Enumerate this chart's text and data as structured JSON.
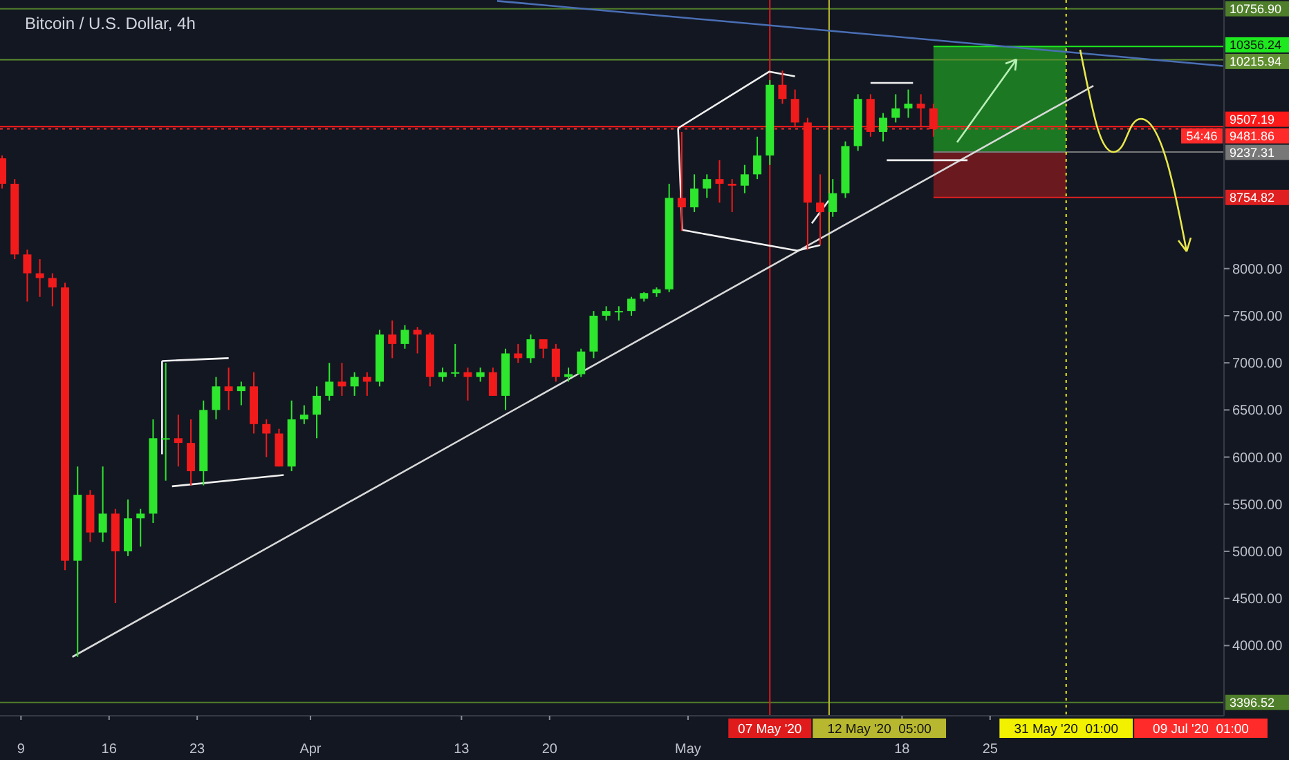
{
  "chart_data": {
    "type": "candlestick",
    "title": "Bitcoin / U.S. Dollar, 4h",
    "x": [
      "2020-03-07T12:00",
      "2020-03-08T12:00",
      "2020-03-09T12:00",
      "2020-03-10T12:00",
      "2020-03-11T12:00",
      "2020-03-12T12:00",
      "2020-03-13T12:00",
      "2020-03-14T12:00",
      "2020-03-15T12:00",
      "2020-03-16T12:00",
      "2020-03-17T12:00",
      "2020-03-18T12:00",
      "2020-03-19T12:00",
      "2020-03-20T12:00",
      "2020-03-21T12:00",
      "2020-03-22T12:00",
      "2020-03-23T12:00",
      "2020-03-24T12:00",
      "2020-03-25T12:00",
      "2020-03-26T12:00",
      "2020-03-27T12:00",
      "2020-03-28T12:00",
      "2020-03-29T12:00",
      "2020-03-30T12:00",
      "2020-03-31T12:00",
      "2020-04-01T12:00",
      "2020-04-02T12:00",
      "2020-04-03T12:00",
      "2020-04-04T12:00",
      "2020-04-05T12:00",
      "2020-04-06T12:00",
      "2020-04-07T12:00",
      "2020-04-08T12:00",
      "2020-04-09T12:00",
      "2020-04-10T12:00",
      "2020-04-11T12:00",
      "2020-04-12T12:00",
      "2020-04-13T12:00",
      "2020-04-14T12:00",
      "2020-04-15T12:00",
      "2020-04-16T12:00",
      "2020-04-17T12:00",
      "2020-04-18T12:00",
      "2020-04-19T12:00",
      "2020-04-20T12:00",
      "2020-04-21T12:00",
      "2020-04-22T12:00",
      "2020-04-23T12:00",
      "2020-04-24T12:00",
      "2020-04-25T12:00",
      "2020-04-26T12:00",
      "2020-04-27T12:00",
      "2020-04-28T12:00",
      "2020-04-29T12:00",
      "2020-04-30T12:00",
      "2020-05-01T12:00",
      "2020-05-02T12:00",
      "2020-05-03T12:00",
      "2020-05-04T12:00",
      "2020-05-05T12:00",
      "2020-05-06T12:00",
      "2020-05-07T12:00",
      "2020-05-08T12:00",
      "2020-05-09T12:00",
      "2020-05-10T12:00",
      "2020-05-11T12:00",
      "2020-05-12T12:00",
      "2020-05-13T12:00",
      "2020-05-14T12:00",
      "2020-05-15T12:00",
      "2020-05-16T12:00",
      "2020-05-17T12:00",
      "2020-05-18T12:00",
      "2020-05-19T12:00",
      "2020-05-20T12:00"
    ],
    "ohlc": [
      [
        9170,
        9200,
        8850,
        8900
      ],
      [
        8900,
        8950,
        8100,
        8150
      ],
      [
        8150,
        8200,
        7650,
        7950
      ],
      [
        7950,
        8100,
        7700,
        7900
      ],
      [
        7900,
        7950,
        7600,
        7800
      ],
      [
        7800,
        7850,
        4800,
        4900
      ],
      [
        4900,
        5900,
        3880,
        5600
      ],
      [
        5600,
        5650,
        5100,
        5200
      ],
      [
        5200,
        5900,
        5100,
        5400
      ],
      [
        5400,
        5450,
        4450,
        5000
      ],
      [
        5000,
        5550,
        4950,
        5350
      ],
      [
        5350,
        5450,
        5050,
        5400
      ],
      [
        5400,
        6400,
        5300,
        6200
      ],
      [
        6200,
        7000,
        5750,
        6200
      ],
      [
        6200,
        6450,
        5900,
        6150
      ],
      [
        6150,
        6400,
        5700,
        5850
      ],
      [
        5850,
        6600,
        5700,
        6500
      ],
      [
        6500,
        6850,
        6400,
        6750
      ],
      [
        6750,
        6950,
        6500,
        6700
      ],
      [
        6700,
        6800,
        6550,
        6750
      ],
      [
        6750,
        6900,
        6250,
        6350
      ],
      [
        6350,
        6400,
        6000,
        6250
      ],
      [
        6250,
        6300,
        5900,
        5900
      ],
      [
        5900,
        6600,
        5850,
        6400
      ],
      [
        6400,
        6550,
        6350,
        6450
      ],
      [
        6450,
        6750,
        6200,
        6650
      ],
      [
        6650,
        7000,
        6600,
        6800
      ],
      [
        6800,
        7000,
        6650,
        6750
      ],
      [
        6750,
        6900,
        6650,
        6850
      ],
      [
        6850,
        6900,
        6650,
        6800
      ],
      [
        6800,
        7350,
        6750,
        7300
      ],
      [
        7300,
        7450,
        7050,
        7200
      ],
      [
        7200,
        7400,
        7150,
        7350
      ],
      [
        7350,
        7380,
        7100,
        7300
      ],
      [
        7300,
        7320,
        6750,
        6850
      ],
      [
        6850,
        6950,
        6800,
        6900
      ],
      [
        6900,
        7200,
        6850,
        6900
      ],
      [
        6900,
        6950,
        6600,
        6850
      ],
      [
        6850,
        6950,
        6800,
        6900
      ],
      [
        6900,
        6950,
        6650,
        6650
      ],
      [
        6650,
        7150,
        6500,
        7100
      ],
      [
        7100,
        7200,
        7000,
        7050
      ],
      [
        7050,
        7300,
        7000,
        7250
      ],
      [
        7250,
        7250,
        7050,
        7150
      ],
      [
        7150,
        7200,
        6800,
        6850
      ],
      [
        6850,
        6950,
        6800,
        6880
      ],
      [
        6880,
        7150,
        6850,
        7120
      ],
      [
        7120,
        7550,
        7050,
        7500
      ],
      [
        7500,
        7600,
        7450,
        7550
      ],
      [
        7550,
        7600,
        7450,
        7550
      ],
      [
        7550,
        7700,
        7500,
        7680
      ],
      [
        7680,
        7750,
        7650,
        7740
      ],
      [
        7740,
        7800,
        7700,
        7780
      ],
      [
        7780,
        8900,
        7750,
        8750
      ],
      [
        8750,
        9450,
        8400,
        8650
      ],
      [
        8650,
        9000,
        8600,
        8850
      ],
      [
        8850,
        9000,
        8750,
        8950
      ],
      [
        8950,
        9150,
        8700,
        8900
      ],
      [
        8900,
        8950,
        8600,
        8880
      ],
      [
        8880,
        9100,
        8800,
        9000
      ],
      [
        9000,
        9400,
        8950,
        9200
      ],
      [
        9200,
        10000,
        9100,
        9950
      ],
      [
        9950,
        10100,
        9750,
        9800
      ],
      [
        9800,
        9900,
        9500,
        9550
      ],
      [
        9550,
        9600,
        8200,
        8700
      ],
      [
        8700,
        9000,
        8250,
        8600
      ],
      [
        8600,
        8950,
        8550,
        8800
      ],
      [
        8800,
        9350,
        8750,
        9300
      ],
      [
        9300,
        9850,
        9250,
        9800
      ],
      [
        9800,
        9850,
        9400,
        9450
      ],
      [
        9450,
        9650,
        9350,
        9600
      ],
      [
        9600,
        9850,
        9550,
        9700
      ],
      [
        9700,
        9900,
        9600,
        9750
      ],
      [
        9750,
        9850,
        9500,
        9700
      ],
      [
        9700,
        9750,
        9400,
        9480
      ]
    ],
    "colors": [
      "#f21b1b",
      "#f21b1b",
      "#f21b1b",
      "#f21b1b",
      "#f21b1b",
      "#f21b1b",
      "#2ee62e",
      "#f21b1b",
      "#2ee62e",
      "#f21b1b",
      "#2ee62e",
      "#2ee62e",
      "#2ee62e",
      "#2ee62e",
      "#f21b1b",
      "#f21b1b",
      "#2ee62e",
      "#2ee62e",
      "#f21b1b",
      "#2ee62e",
      "#f21b1b",
      "#f21b1b",
      "#f21b1b",
      "#2ee62e",
      "#2ee62e",
      "#2ee62e",
      "#2ee62e",
      "#f21b1b",
      "#2ee62e",
      "#f21b1b",
      "#2ee62e",
      "#f21b1b",
      "#2ee62e",
      "#f21b1b",
      "#f21b1b",
      "#2ee62e",
      "#2ee62e",
      "#f21b1b",
      "#2ee62e",
      "#f21b1b",
      "#2ee62e",
      "#f21b1b",
      "#2ee62e",
      "#f21b1b",
      "#f21b1b",
      "#2ee62e",
      "#2ee62e",
      "#2ee62e",
      "#2ee62e",
      "#2ee62e",
      "#2ee62e",
      "#2ee62e",
      "#2ee62e",
      "#2ee62e",
      "#f21b1b",
      "#2ee62e",
      "#2ee62e",
      "#f21b1b",
      "#f21b1b",
      "#2ee62e",
      "#2ee62e",
      "#2ee62e",
      "#f21b1b",
      "#f21b1b",
      "#f21b1b",
      "#f21b1b",
      "#2ee62e",
      "#2ee62e",
      "#2ee62e",
      "#f21b1b",
      "#2ee62e",
      "#2ee62e",
      "#2ee62e",
      "#f21b1b",
      "#f21b1b"
    ],
    "series": [
      {
        "type": "line",
        "color": "#d9d9d9",
        "x": [
          "2020-03-13T02:00",
          "2020-06-02T05:00"
        ],
        "values": [
          3880,
          9940
        ]
      },
      {
        "type": "line",
        "color": "#4a6fb5",
        "x": [
          "2020-04-15T20:00",
          "2020-06-12T12:00"
        ],
        "values": [
          10840,
          10150
        ]
      },
      {
        "type": "line",
        "color": "#f0f0f0",
        "x": [
          "2020-03-20T05:00",
          "2020-03-25T12:00"
        ],
        "values": [
          7020,
          7050
        ]
      },
      {
        "type": "line",
        "color": "#f0f0f0",
        "x": [
          "2020-03-20T05:00",
          "2020-03-20T05:00"
        ],
        "values": [
          7020,
          6030
        ]
      },
      {
        "type": "line",
        "color": "#f0f0f0",
        "x": [
          "2020-03-21T00:00",
          "2020-03-29T21:00"
        ],
        "values": [
          5690,
          5810
        ]
      },
      {
        "type": "line",
        "color": "#f0f0f0",
        "x": [
          "2020-04-30T05:00",
          "2020-05-07T11:00",
          "2020-05-09T12:00"
        ],
        "values": [
          9490,
          10090,
          10040
        ]
      },
      {
        "type": "line",
        "color": "#f0f0f0",
        "x": [
          "2020-04-30T05:00",
          "2020-04-30T13:00",
          "2020-05-09T16:00",
          "2020-05-11T12:00"
        ],
        "values": [
          9490,
          8410,
          8190,
          8250
        ]
      },
      {
        "type": "line",
        "color": "#f0f0f0",
        "x": [
          "2020-05-10T20:00",
          "2020-05-12T04:00"
        ],
        "values": [
          8480,
          8720
        ]
      },
      {
        "type": "line",
        "color": "#f0f0f0",
        "x": [
          "2020-05-15T12:00",
          "2020-05-18T21:00"
        ],
        "values": [
          9970,
          9970
        ]
      },
      {
        "type": "line",
        "color": "#f0f0f0",
        "x": [
          "2020-05-16T19:00",
          "2020-05-23T05:00"
        ],
        "values": [
          9150,
          9150
        ]
      }
    ],
    "xlim": [
      "2020-03-07T08:00",
      "2020-06-12T14:00"
    ],
    "xticks": [
      {
        "value": "2020-03-09T00:00",
        "label": "9"
      },
      {
        "value": "2020-03-16T00:00",
        "label": "16"
      },
      {
        "value": "2020-03-23T00:00",
        "label": "23"
      },
      {
        "value": "2020-04-01T00:00",
        "label": "Apr"
      },
      {
        "value": "2020-04-13T00:00",
        "label": "13"
      },
      {
        "value": "2020-04-20T00:00",
        "label": "20"
      },
      {
        "value": "2020-05-01T00:00",
        "label": "May"
      },
      {
        "value": "2020-05-18T00:00",
        "label": "18"
      },
      {
        "value": "2020-05-25T00:00",
        "label": "25"
      }
    ],
    "ylim": [
      3255,
      10850
    ],
    "yticks": [
      {
        "value": 4000,
        "label": "4000.00"
      },
      {
        "value": 4500,
        "label": "4500.00"
      },
      {
        "value": 5000,
        "label": "5000.00"
      },
      {
        "value": 5500,
        "label": "5500.00"
      },
      {
        "value": 6000,
        "label": "6000.00"
      },
      {
        "value": 6500,
        "label": "6500.00"
      },
      {
        "value": 7000,
        "label": "7000.00"
      },
      {
        "value": 7500,
        "label": "7500.00"
      },
      {
        "value": 8000,
        "label": "8000.00"
      }
    ],
    "ref_lines": [
      {
        "axis": "y",
        "value": 10756.9,
        "label": "10756.90",
        "color": "#4f7f2a"
      },
      {
        "axis": "y",
        "value": 10215.94,
        "label": "10215.94",
        "color": "#5f8f30"
      },
      {
        "axis": "y",
        "value": 9507.19,
        "label": "9507.19",
        "color": "#ff1a1a"
      },
      {
        "axis": "y",
        "value": 9481.86,
        "label": "9481.86",
        "color": "#ff2a2a",
        "line_style": "dotted"
      },
      {
        "axis": "y",
        "value": 10356.24,
        "label": "10356.24",
        "color": "#1ee81e"
      },
      {
        "axis": "y",
        "value": 9237.31,
        "label": "9237.31",
        "color": "#787878"
      },
      {
        "axis": "y",
        "value": 8754.82,
        "label": "8754.82",
        "color": "#e02020"
      },
      {
        "axis": "y",
        "value": 3396.52,
        "label": "3396.52",
        "color": "#4f7f2a"
      },
      {
        "axis": "x",
        "value": "2020-05-07T12:00",
        "label": "07 May '20",
        "color": "#e01b1b"
      },
      {
        "axis": "x",
        "value": "2020-05-12T05:00",
        "label": "12 May '20  05:00",
        "color": "#b8b830"
      },
      {
        "axis": "x",
        "value": "2020-05-31T01:00",
        "label": "31 May '20  01:00",
        "color": "#f2f200",
        "line_style": "dotted"
      }
    ],
    "bands": [
      {
        "axis": "y",
        "from": 9237.31,
        "to": 10356.24,
        "color": "#1f8a22"
      },
      {
        "axis": "y",
        "from": 8754.82,
        "to": 9237.31,
        "color": "#7a1a1e"
      }
    ],
    "legend": "right",
    "annotations": [
      "54:46",
      "09 Jul '20  01:00"
    ]
  }
}
